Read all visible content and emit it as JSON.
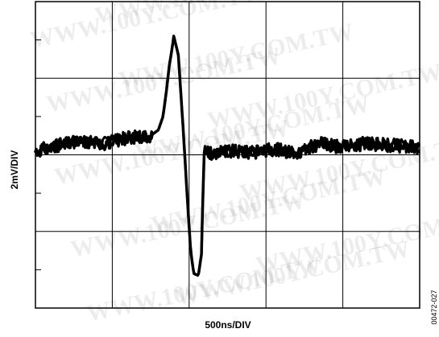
{
  "chart_data": {
    "type": "line",
    "xlabel": "500ns/DIV",
    "ylabel": "2mV/DIV",
    "x_divisions": 5,
    "y_divisions": 8,
    "x_unit": "ns",
    "x_per_div": 500,
    "y_unit": "mV",
    "y_per_div": 2,
    "xlim": [
      0,
      2500
    ],
    "ylim": [
      -8,
      8
    ],
    "grid": true,
    "series": [
      {
        "x": [
          0,
          150,
          300,
          450,
          600,
          750,
          800,
          830,
          850,
          870,
          890,
          900,
          930,
          960,
          990,
          1010,
          1030,
          1060,
          1080,
          1090,
          1100,
          1110,
          1150,
          1250,
          1400,
          1550,
          1700,
          1850,
          2000,
          2150,
          2300,
          2500
        ],
        "y": [
          0.2,
          0.5,
          0.7,
          0.6,
          0.9,
          1.0,
          1.3,
          2.0,
          3.2,
          4.6,
          5.6,
          6.2,
          5.2,
          1.5,
          -2.5,
          -5.0,
          -6.2,
          -6.3,
          -5.2,
          -2.0,
          0.6,
          0.2,
          0.1,
          0.2,
          0.1,
          0.3,
          0.1,
          0.6,
          0.4,
          0.6,
          0.5,
          0.4
        ],
        "noise_mV": 0.35
      }
    ]
  },
  "figure_id": "00472-027",
  "watermark": "WWW.100Y.COM.TW"
}
